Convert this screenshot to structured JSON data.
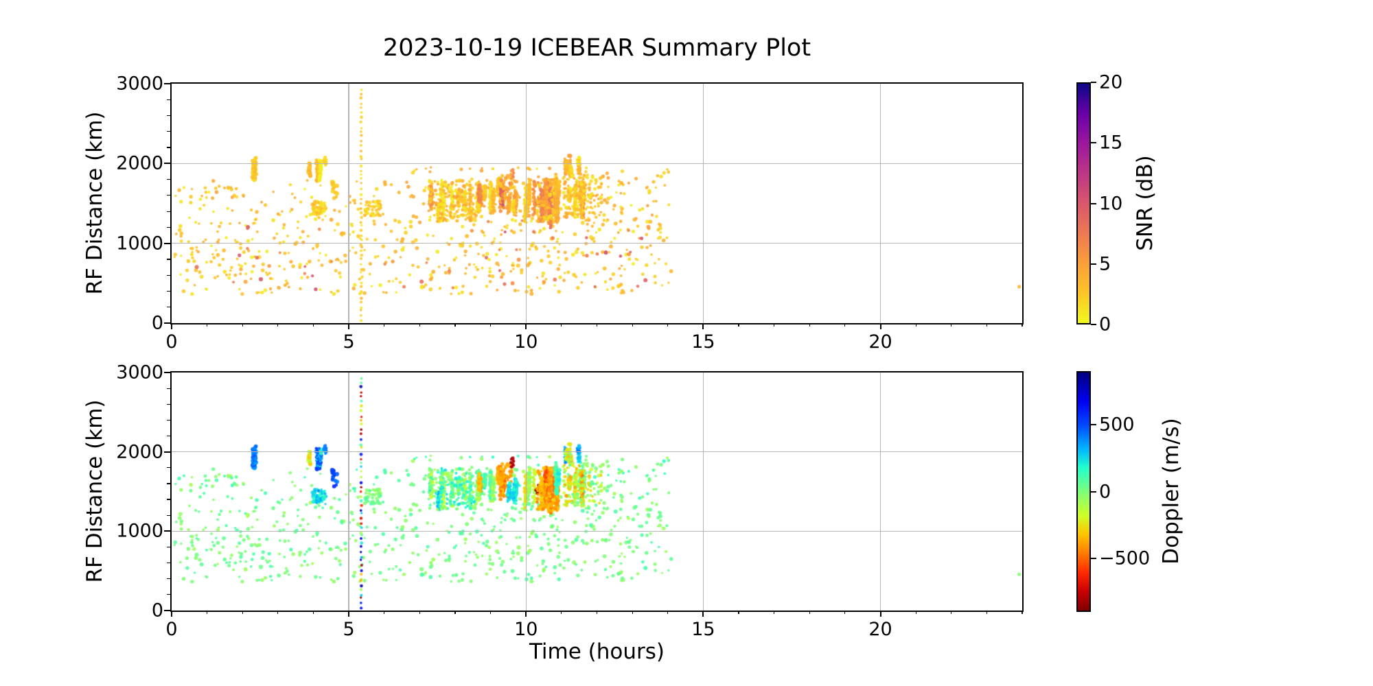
{
  "title": "2023-10-19 ICEBEAR Summary Plot",
  "chart_data": {
    "type": "scatter",
    "title": "2023-10-19 ICEBEAR Summary Plot",
    "seed": 20231019,
    "grid_color": "#b5b5b5",
    "x_axis": {
      "label": "Time (hours)",
      "range": [
        0,
        24
      ],
      "major_ticks": [
        0,
        5,
        10,
        15,
        20
      ],
      "major_tick_labels": [
        "0",
        "5",
        "10",
        "15",
        "20"
      ],
      "minor_step": 1,
      "grid": true
    },
    "y_axis": {
      "label": "RF Distance (km)",
      "range": [
        0,
        3000
      ],
      "major_ticks": [
        0,
        1000,
        2000,
        3000
      ],
      "major_tick_labels": [
        "0",
        "1000",
        "2000",
        "3000"
      ],
      "minor_step": 200,
      "grid": true
    },
    "panels": [
      {
        "id": "snr",
        "color_field": "snr",
        "colorbar": {
          "label": "SNR (dB)",
          "range": [
            0,
            20
          ],
          "ticks": [
            0,
            5,
            10,
            15,
            20
          ],
          "tick_labels": [
            "0",
            "5",
            "10",
            "15",
            "20"
          ],
          "colormap": "plasma_r"
        }
      },
      {
        "id": "dop",
        "color_field": "dop",
        "colorbar": {
          "label": "Doppler (m/s)",
          "range": [
            -900,
            900
          ],
          "ticks": [
            -500,
            0,
            500
          ],
          "tick_labels": [
            "−500",
            "0",
            "500"
          ],
          "colormap": "jet_r"
        }
      }
    ],
    "colormaps": {
      "plasma_r": [
        [
          0.0,
          "#f0f921"
        ],
        [
          0.125,
          "#fdc527"
        ],
        [
          0.25,
          "#fb9f3a"
        ],
        [
          0.375,
          "#ed7953"
        ],
        [
          0.5,
          "#d8576b"
        ],
        [
          0.625,
          "#bd3786"
        ],
        [
          0.75,
          "#9c179e"
        ],
        [
          0.875,
          "#6a00a8"
        ],
        [
          1.0,
          "#0d0887"
        ]
      ],
      "jet_r": [
        [
          0.0,
          "#7f0000"
        ],
        [
          0.08,
          "#c80000"
        ],
        [
          0.16,
          "#ff2a00"
        ],
        [
          0.24,
          "#ff7a00"
        ],
        [
          0.32,
          "#ffc400"
        ],
        [
          0.4,
          "#ceff29"
        ],
        [
          0.5,
          "#7dff7a"
        ],
        [
          0.6,
          "#22ffce"
        ],
        [
          0.68,
          "#00b4ff"
        ],
        [
          0.78,
          "#0048ff"
        ],
        [
          0.88,
          "#0000f1"
        ],
        [
          1.0,
          "#00007f"
        ]
      ]
    },
    "clusters": [
      {
        "kind": "scatter",
        "t": [
          0.08,
          14.1
        ],
        "rf": [
          360,
          1340
        ],
        "n": 500,
        "size": [
          3.4,
          5.8
        ],
        "snr": [
          0.5,
          4.5
        ],
        "dop": [
          -70,
          110
        ]
      },
      {
        "kind": "scatter",
        "t": [
          0.3,
          14.05
        ],
        "rf": [
          420,
          1320
        ],
        "n": 55,
        "size": [
          3.8,
          6.2
        ],
        "snr": [
          5,
          11
        ],
        "dop": [
          -110,
          110
        ]
      },
      {
        "kind": "scatter",
        "t": [
          0.1,
          6.8
        ],
        "rf": [
          1350,
          1790
        ],
        "n": 80,
        "size": [
          3.4,
          5.6
        ],
        "snr": [
          0.5,
          5
        ],
        "dop": [
          -90,
          150
        ]
      },
      {
        "kind": "scatter",
        "t": [
          6.8,
          14.05
        ],
        "rf": [
          1310,
          1960
        ],
        "n": 190,
        "size": [
          3.4,
          5.6
        ],
        "snr": [
          0.5,
          5
        ],
        "dop": [
          -100,
          160
        ]
      },
      {
        "kind": "scatter",
        "t": [
          5.45,
          5.9
        ],
        "rf": [
          1340,
          1530
        ],
        "n": 40,
        "size": [
          3.4,
          5.6
        ],
        "snr": [
          0.5,
          4
        ],
        "dop": [
          -60,
          120
        ]
      },
      {
        "kind": "streaks",
        "t": [
          2.28,
          2.44
        ],
        "rf": [
          1780,
          2110
        ],
        "streaks": 2,
        "pts": 26,
        "size": [
          3.6,
          6
        ],
        "snr": [
          0.5,
          4
        ],
        "dop": [
          380,
          660
        ]
      },
      {
        "kind": "streaks",
        "t": [
          3.88,
          4.2
        ],
        "rf": [
          1750,
          2140
        ],
        "streaks": 3,
        "pts": 30,
        "size": [
          3.6,
          6
        ],
        "snr": [
          0.5,
          5
        ],
        "dop": [
          -260,
          520
        ]
      },
      {
        "kind": "scatter",
        "t": [
          3.95,
          4.35
        ],
        "rf": [
          1330,
          1530
        ],
        "n": 55,
        "size": [
          3.4,
          6
        ],
        "snr": [
          0.5,
          3.5
        ],
        "dop": [
          140,
          400
        ]
      },
      {
        "kind": "streaks",
        "t": [
          4.26,
          4.42
        ],
        "rf": [
          1970,
          2100
        ],
        "streaks": 1,
        "pts": 12,
        "size": [
          3.6,
          5.6
        ],
        "snr": [
          0.5,
          3
        ],
        "dop": [
          300,
          520
        ]
      },
      {
        "kind": "scatter",
        "t": [
          4.5,
          4.68
        ],
        "rf": [
          1540,
          1770
        ],
        "n": 16,
        "size": [
          4,
          6.4
        ],
        "snr": [
          0.5,
          3
        ],
        "dop": [
          420,
          640
        ]
      },
      {
        "kind": "vline",
        "t": 5.35,
        "rf": [
          30,
          2930
        ],
        "n": 50,
        "size": [
          3.4,
          4.8
        ],
        "snr": [
          0.5,
          3.5
        ],
        "dop": [
          -850,
          850
        ],
        "dop_mode": "bimodal"
      },
      {
        "kind": "streaks",
        "t": [
          7.25,
          8.6
        ],
        "rf": [
          1260,
          1790
        ],
        "streaks": 9,
        "pts": 22,
        "size": [
          3.4,
          6
        ],
        "snr": [
          0.5,
          6
        ],
        "dop": [
          -140,
          300
        ]
      },
      {
        "kind": "scatter",
        "t": [
          7.25,
          8.62
        ],
        "rf": [
          1270,
          1800
        ],
        "n": 150,
        "size": [
          3.4,
          5.6
        ],
        "snr": [
          0.5,
          5
        ],
        "dop": [
          -120,
          260
        ]
      },
      {
        "kind": "streaks",
        "t": [
          8.6,
          9.22
        ],
        "rf": [
          1330,
          1820
        ],
        "streaks": 6,
        "pts": 26,
        "size": [
          3.4,
          6
        ],
        "snr": [
          0.5,
          6
        ],
        "dop": [
          -90,
          230
        ]
      },
      {
        "kind": "streaks",
        "t": [
          8.68,
          8.86
        ],
        "rf": [
          1440,
          1760
        ],
        "streaks": 2,
        "pts": 18,
        "size": [
          3.6,
          6
        ],
        "snr": [
          2,
          7
        ],
        "dop": [
          -480,
          -280
        ]
      },
      {
        "kind": "streaks",
        "t": [
          9.22,
          9.62
        ],
        "rf": [
          1370,
          1910
        ],
        "streaks": 5,
        "pts": 32,
        "size": [
          3.6,
          6.4
        ],
        "snr": [
          2,
          9.5
        ],
        "dop": [
          -540,
          -300
        ]
      },
      {
        "kind": "scatter",
        "t": [
          9.25,
          9.6
        ],
        "rf": [
          1400,
          1850
        ],
        "n": 60,
        "size": [
          3.4,
          5.8
        ],
        "snr": [
          1.5,
          7
        ],
        "dop": [
          -500,
          -320
        ]
      },
      {
        "kind": "streaks",
        "t": [
          9.5,
          9.88
        ],
        "rf": [
          1330,
          1710
        ],
        "streaks": 4,
        "pts": 22,
        "size": [
          3.4,
          6
        ],
        "snr": [
          1,
          5
        ],
        "dop": [
          40,
          280
        ]
      },
      {
        "kind": "scatter",
        "t": [
          9.56,
          9.66
        ],
        "rf": [
          1810,
          1930
        ],
        "n": 9,
        "size": [
          3.6,
          5.4
        ],
        "snr": [
          4,
          8
        ],
        "dop": [
          -860,
          -740
        ]
      },
      {
        "kind": "streaks",
        "t": [
          9.94,
          10.36
        ],
        "rf": [
          1250,
          1810
        ],
        "streaks": 6,
        "pts": 28,
        "size": [
          3.4,
          6
        ],
        "snr": [
          1,
          6
        ],
        "dop": [
          -240,
          60
        ]
      },
      {
        "kind": "scatter",
        "t": [
          10.26,
          10.38
        ],
        "rf": [
          1470,
          1640
        ],
        "n": 10,
        "size": [
          3.6,
          5.4
        ],
        "snr": [
          5,
          9
        ],
        "dop": [
          -870,
          -760
        ]
      },
      {
        "kind": "streaks",
        "t": [
          10.36,
          10.88
        ],
        "rf": [
          1200,
          1810
        ],
        "streaks": 10,
        "pts": 36,
        "size": [
          3.6,
          6.4
        ],
        "snr": [
          1,
          8
        ],
        "dop": [
          -540,
          -280
        ]
      },
      {
        "kind": "scatter",
        "t": [
          10.3,
          10.9
        ],
        "rf": [
          1250,
          1800
        ],
        "n": 90,
        "size": [
          3.4,
          5.8
        ],
        "snr": [
          1,
          6
        ],
        "dop": [
          -470,
          -290
        ]
      },
      {
        "kind": "streaks",
        "t": [
          10.84,
          11.08
        ],
        "rf": [
          1440,
          1910
        ],
        "streaks": 3,
        "pts": 24,
        "size": [
          3.4,
          6
        ],
        "snr": [
          1,
          5
        ],
        "dop": [
          60,
          300
        ]
      },
      {
        "kind": "streaks",
        "t": [
          10.9,
          11.28
        ],
        "rf": [
          1800,
          2130
        ],
        "streaks": 4,
        "pts": 20,
        "size": [
          3.4,
          6
        ],
        "snr": [
          0.5,
          5
        ],
        "dop": [
          -360,
          360
        ]
      },
      {
        "kind": "streaks",
        "t": [
          11.06,
          11.62
        ],
        "rf": [
          1300,
          1860
        ],
        "streaks": 7,
        "pts": 30,
        "size": [
          3.4,
          6.2
        ],
        "snr": [
          1,
          6.5
        ],
        "dop": [
          -430,
          140
        ]
      },
      {
        "kind": "scatter",
        "t": [
          11.05,
          11.6
        ],
        "rf": [
          1320,
          1850
        ],
        "n": 80,
        "size": [
          3.4,
          5.6
        ],
        "snr": [
          0.5,
          5
        ],
        "dop": [
          -400,
          100
        ]
      },
      {
        "kind": "streaks",
        "t": [
          11.3,
          11.52
        ],
        "rf": [
          1870,
          2130
        ],
        "streaks": 2,
        "pts": 18,
        "size": [
          3.4,
          5.8
        ],
        "snr": [
          0.5,
          4
        ],
        "dop": [
          140,
          430
        ]
      },
      {
        "kind": "scatter",
        "t": [
          11.6,
          12.15
        ],
        "rf": [
          1340,
          1860
        ],
        "n": 55,
        "size": [
          3.4,
          5.6
        ],
        "snr": [
          0.5,
          5
        ],
        "dop": [
          -340,
          110
        ]
      },
      {
        "kind": "scatter",
        "t": [
          23.9,
          23.96
        ],
        "rf": [
          450,
          480
        ],
        "n": 1,
        "size": [
          5,
          5.6
        ],
        "snr": [
          3,
          4
        ],
        "dop": [
          -40,
          -10
        ]
      }
    ]
  }
}
